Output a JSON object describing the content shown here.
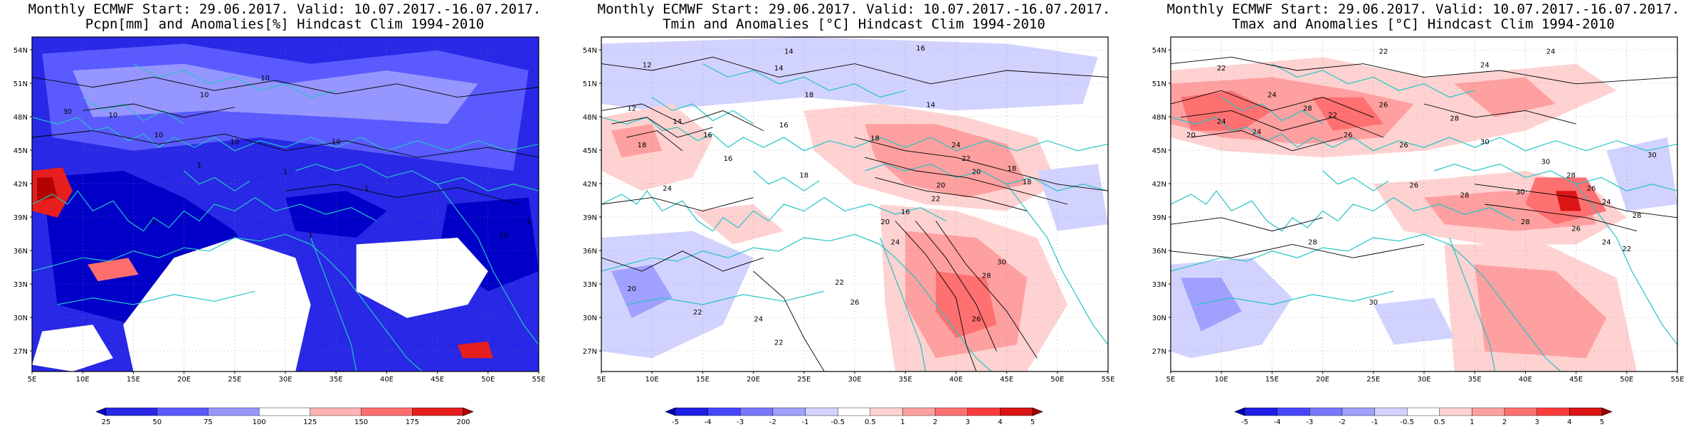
{
  "panels": [
    {
      "title_line1": "Monthly ECMWF Start: 29.06.2017. Valid: 10.07.2017.-16.07.2017.",
      "title_line2": "Pcpn[mm] and Anomalies[%] Hindcast Clim 1994-2010",
      "colorbar": {
        "labels": [
          "25",
          "50",
          "75",
          "100",
          "125",
          "150",
          "175",
          "200"
        ],
        "colors": [
          "#0000c8",
          "#2828e6",
          "#5a5aff",
          "#9696ff",
          "#ffffff",
          "#ffb4b4",
          "#ff6e6e",
          "#e61e1e",
          "#b40000"
        ]
      },
      "contour_labels": [
        "10",
        "10",
        "10",
        "30",
        "10",
        "10",
        "10",
        "1",
        "1",
        "1",
        "1",
        "1",
        "10",
        "1"
      ]
    },
    {
      "title_line1": "Monthly ECMWF Start: 29.06.2017. Valid: 10.07.2017.-16.07.2017.",
      "title_line2": "Tmin and Anomalies [°C] Hindcast Clim 1994-2010",
      "colorbar": {
        "labels": [
          "-5",
          "-4",
          "-3",
          "-2",
          "-1",
          "-0.5",
          "0.5",
          "1",
          "2",
          "3",
          "4",
          "5"
        ],
        "colors": [
          "#0000b4",
          "#1e1ee6",
          "#4646ff",
          "#7878ff",
          "#a0a0ff",
          "#d2d2ff",
          "#ffffff",
          "#ffd2d2",
          "#ffa0a0",
          "#ff7070",
          "#ff3c3c",
          "#dc1414",
          "#a00000"
        ]
      },
      "contour_labels": [
        "14",
        "12",
        "12",
        "14",
        "16",
        "18",
        "16",
        "18",
        "24",
        "20",
        "22",
        "24",
        "22",
        "26",
        "28",
        "30",
        "18",
        "18",
        "20",
        "22",
        "24",
        "20",
        "22",
        "24",
        "26",
        "18",
        "16",
        "18",
        "16",
        "14",
        "14",
        "16",
        "20",
        "22"
      ]
    },
    {
      "title_line1": "Monthly ECMWF Start: 29.06.2017. Valid: 10.07.2017.-16.07.2017.",
      "title_line2": "Tmax and Anomalies [°C] Hindcast Clim 1994-2010",
      "colorbar": {
        "labels": [
          "-5",
          "-4",
          "-3",
          "-2",
          "-1",
          "-0.5",
          "0.5",
          "1",
          "2",
          "3",
          "4",
          "5"
        ],
        "colors": [
          "#0000b4",
          "#1e1ee6",
          "#4646ff",
          "#7878ff",
          "#a0a0ff",
          "#d2d2ff",
          "#ffffff",
          "#ffd2d2",
          "#ffa0a0",
          "#ff7070",
          "#ff3c3c",
          "#dc1414",
          "#a00000"
        ]
      },
      "contour_labels": [
        "22",
        "24",
        "24",
        "22",
        "24",
        "26",
        "28",
        "30",
        "24",
        "20",
        "22",
        "30",
        "28",
        "26",
        "24",
        "28",
        "30",
        "30",
        "28",
        "26",
        "28",
        "26",
        "24",
        "22",
        "28",
        "30",
        "26",
        "28",
        "24",
        "26"
      ]
    }
  ],
  "axes": {
    "lat_labels": [
      "54N",
      "51N",
      "48N",
      "45N",
      "42N",
      "39N",
      "36N",
      "33N",
      "30N",
      "27N"
    ],
    "lon_labels": [
      "5E",
      "10E",
      "15E",
      "20E",
      "25E",
      "30E",
      "35E",
      "40E",
      "45E",
      "50E",
      "55E"
    ]
  },
  "style": {
    "coast_color": "#22c4c4",
    "contour_color": "#000000",
    "grid_color": "#888888"
  }
}
